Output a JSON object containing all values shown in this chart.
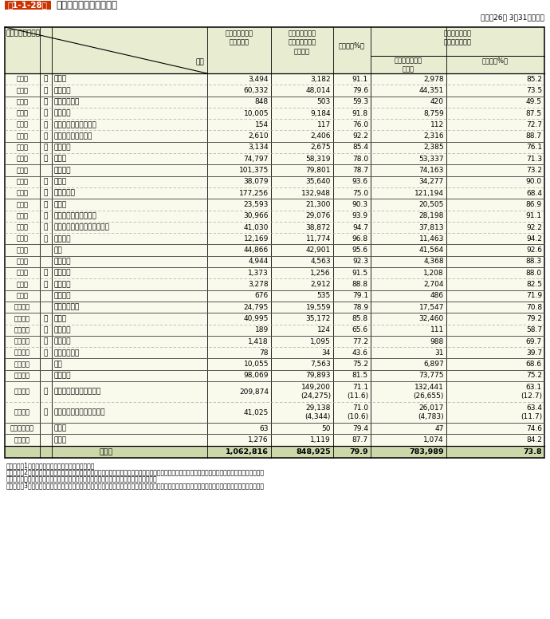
{
  "title_box": "第1-1-28表",
  "title_text": "全国の防火管理実施状況",
  "subtitle": "（平成26年 3月31日現在）",
  "header_bg": "#e8ecd0",
  "row_bg": "#fafaec",
  "total_bg": "#ccd8aa",
  "title_box_bg": "#cc3300",
  "rows": [
    [
      "（一）",
      "イ",
      "劇場等",
      "3,494",
      "3,182",
      "91.1",
      "2,978",
      "85.2",
      false
    ],
    [
      "（一）",
      "ロ",
      "公会堂等",
      "60,332",
      "48,014",
      "79.6",
      "44,351",
      "73.5",
      false
    ],
    [
      "（二）",
      "イ",
      "キャバレー等",
      "848",
      "503",
      "59.3",
      "420",
      "49.5",
      false
    ],
    [
      "（二）",
      "ロ",
      "遊技場等",
      "10,005",
      "9,184",
      "91.8",
      "8,759",
      "87.5",
      false
    ],
    [
      "（二）",
      "ハ",
      "性風俗特殊営業店舗等",
      "154",
      "117",
      "76.0",
      "112",
      "72.7",
      false
    ],
    [
      "（二）",
      "ニ",
      "カラオケボックス等",
      "2,610",
      "2,406",
      "92.2",
      "2,316",
      "88.7",
      false
    ],
    [
      "（三）",
      "イ",
      "料理店等",
      "3,134",
      "2,675",
      "85.4",
      "2,385",
      "76.1",
      false
    ],
    [
      "（三）",
      "ロ",
      "飲食店",
      "74,797",
      "58,319",
      "78.0",
      "53,337",
      "71.3",
      false
    ],
    [
      "（四）",
      "",
      "百貨店等",
      "101,375",
      "79,801",
      "78.7",
      "74,163",
      "73.2",
      false
    ],
    [
      "（五）",
      "イ",
      "旅館等",
      "38,079",
      "35,640",
      "93.6",
      "34,277",
      "90.0",
      false
    ],
    [
      "（五）",
      "ロ",
      "共同住宅等",
      "177,256",
      "132,948",
      "75.0",
      "121,194",
      "68.4",
      false
    ],
    [
      "（六）",
      "イ",
      "病院等",
      "23,593",
      "21,300",
      "90.3",
      "20,505",
      "86.9",
      false
    ],
    [
      "（六）",
      "ロ",
      "特別養護老人ホーム等",
      "30,966",
      "29,076",
      "93.9",
      "28,198",
      "91.1",
      false
    ],
    [
      "（六）",
      "ハ",
      "老人デイサービスセンター等",
      "41,030",
      "38,872",
      "94.7",
      "37,813",
      "92.2",
      false
    ],
    [
      "（六）",
      "ニ",
      "幼稚園等",
      "12,169",
      "11,774",
      "96.8",
      "11,463",
      "94.2",
      false
    ],
    [
      "（七）",
      "",
      "学校",
      "44,866",
      "42,901",
      "95.6",
      "41,564",
      "92.6",
      false
    ],
    [
      "（八）",
      "",
      "図書館等",
      "4,944",
      "4,563",
      "92.3",
      "4,368",
      "88.3",
      false
    ],
    [
      "（九）",
      "イ",
      "特殊浴場",
      "1,373",
      "1,256",
      "91.5",
      "1,208",
      "88.0",
      false
    ],
    [
      "（九）",
      "ロ",
      "一般浴場",
      "3,278",
      "2,912",
      "88.8",
      "2,704",
      "82.5",
      false
    ],
    [
      "（十）",
      "",
      "停車場等",
      "676",
      "535",
      "79.1",
      "486",
      "71.9",
      false
    ],
    [
      "（十一）",
      "",
      "神社・寺院等",
      "24,795",
      "19,559",
      "78.9",
      "17,547",
      "70.8",
      false
    ],
    [
      "（十二）",
      "イ",
      "工場等",
      "40,995",
      "35,172",
      "85.8",
      "32,460",
      "79.2",
      false
    ],
    [
      "（十二）",
      "ロ",
      "スタジオ",
      "189",
      "124",
      "65.6",
      "111",
      "58.7",
      false
    ],
    [
      "（十三）",
      "イ",
      "駐車場等",
      "1,418",
      "1,095",
      "77.2",
      "988",
      "69.7",
      false
    ],
    [
      "（十三）",
      "ロ",
      "航空機格納庫",
      "78",
      "34",
      "43.6",
      "31",
      "39.7",
      false
    ],
    [
      "（十四）",
      "",
      "倉庫",
      "10,055",
      "7,563",
      "75.2",
      "6,897",
      "68.6",
      false
    ],
    [
      "（十五）",
      "",
      "事務所等",
      "98,069",
      "79,893",
      "81.5",
      "73,775",
      "75.2",
      false
    ],
    [
      "（十六）",
      "イ",
      "特定複合用途防火対象物",
      "209,874",
      "149,200\n(24,275)",
      "71.1\n(11.6)",
      "132,441\n(26,655)",
      "63.1\n(12.7)",
      true
    ],
    [
      "（十六）",
      "ロ",
      "非特定複合用途防火対象物",
      "41,025",
      "29,138\n(4,344)",
      "71.0\n(10.6)",
      "26,017\n(4,783)",
      "63.4\n(11.7)",
      true
    ],
    [
      "（十六の二）",
      "",
      "地下街",
      "63",
      "50",
      "79.4",
      "47",
      "74.6",
      false
    ],
    [
      "（十七）",
      "",
      "文化財",
      "1,276",
      "1,119",
      "87.7",
      "1,074",
      "84.2",
      false
    ]
  ],
  "total_row": [
    "合　計",
    "1,062,816",
    "848,925",
    "79.9",
    "783,989",
    "73.8"
  ],
  "notes": [
    "（備考）　1　「防火対象物実態等調査」により作成",
    "　　　　　2　防火対象物の管理権原者が複数であるときは、そのすべてが防火管理者の選任又は防火管理に係る消防計画の作成をしている場合のみ計上す",
    "　　　　　　る。（　）内は、部分的に選任又は作成されている防火対象物の数値である。",
    "　　　　　3　防火対象物の区分は、消防法施行令別表第一による区分であり、施設の名称はその例示である。以下本節においてことわりのない限り同じ。"
  ]
}
